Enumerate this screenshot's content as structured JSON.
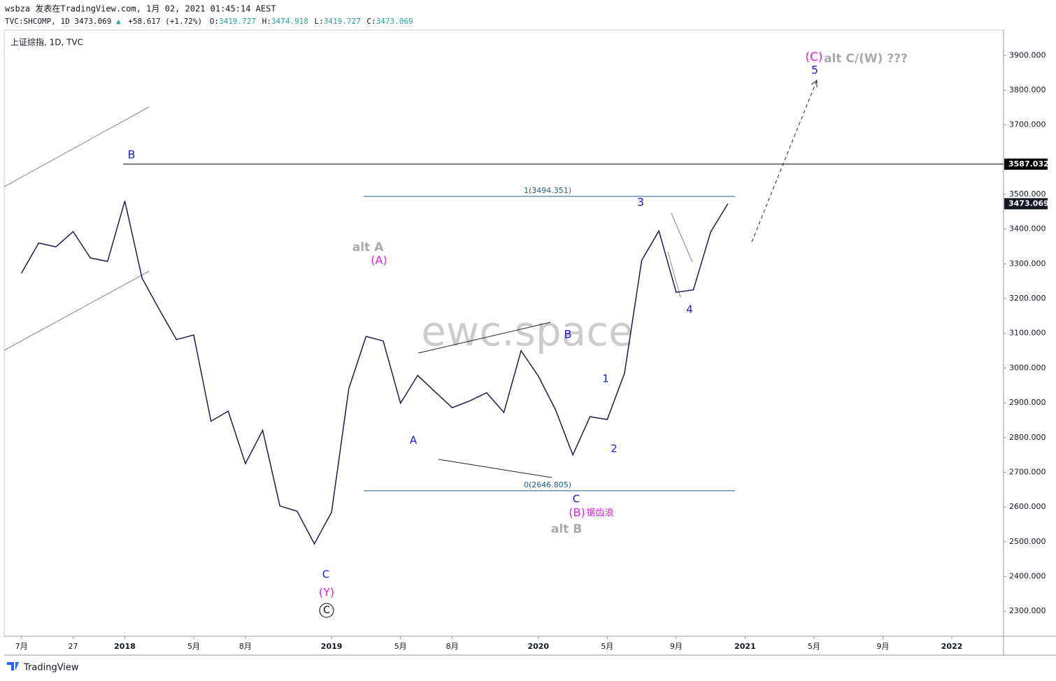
{
  "header": {
    "line1": "wsbza 发表在TradingView.com, 1月 02, 2021 01:45:14 AEST",
    "symbol": "TVC:SHCOMP, 1D 3473.069",
    "arrow": "▲",
    "change": "+58.617 (+1.72%)",
    "o_label": "O:",
    "o": "3419.727",
    "h_label": "H:",
    "h": "3474.918",
    "l_label": "L:",
    "l": "3419.727",
    "c_label": "C:",
    "c": "3473.069"
  },
  "legend": "上证综指, 1D, TVC",
  "watermark": "ewc.space",
  "footer": "TradingView",
  "chart_data": {
    "type": "line",
    "color": "#1c1c4a",
    "x": [
      "2017-07",
      "2017-08",
      "2017-09",
      "2017-10",
      "2017-11",
      "2017-12",
      "2018-01",
      "2018-02",
      "2018-03",
      "2018-04",
      "2018-05",
      "2018-06",
      "2018-07",
      "2018-08",
      "2018-09",
      "2018-10",
      "2018-11",
      "2018-12",
      "2019-01",
      "2019-02",
      "2019-03",
      "2019-04",
      "2019-05",
      "2019-06",
      "2019-07",
      "2019-08",
      "2019-09",
      "2019-10",
      "2019-11",
      "2019-12",
      "2020-01",
      "2020-02",
      "2020-03",
      "2020-04",
      "2020-05",
      "2020-06",
      "2020-07",
      "2020-08",
      "2020-09",
      "2020-10",
      "2020-11",
      "2020-12"
    ],
    "values": [
      3273,
      3360,
      3349,
      3393,
      3317,
      3307,
      3481,
      3259,
      3169,
      3082,
      3095,
      2847,
      2876,
      2725,
      2821,
      2603,
      2588,
      2494,
      2585,
      2941,
      3091,
      3078,
      2899,
      2979,
      2932,
      2886,
      2905,
      2929,
      2872,
      3050,
      2977,
      2880,
      2750,
      2860,
      2852,
      2985,
      3310,
      3395,
      3218,
      3225,
      3392,
      3473
    ],
    "xlim": [
      "2017-06",
      "2022-04"
    ],
    "xticks": [
      {
        "value": "2017-07",
        "label": "7月"
      },
      {
        "value": "2017-10",
        "label": "27"
      },
      {
        "value": "2018-01",
        "label": "2018"
      },
      {
        "value": "2018-05",
        "label": "5月"
      },
      {
        "value": "2018-08",
        "label": "8月"
      },
      {
        "value": "2019-01",
        "label": "2019"
      },
      {
        "value": "2019-05",
        "label": "5月"
      },
      {
        "value": "2019-08",
        "label": "8月"
      },
      {
        "value": "2020-01",
        "label": "2020"
      },
      {
        "value": "2020-05",
        "label": "5月"
      },
      {
        "value": "2020-09",
        "label": "9月"
      },
      {
        "value": "2021-01",
        "label": "2021"
      },
      {
        "value": "2021-05",
        "label": "5月"
      },
      {
        "value": "2021-09",
        "label": "9月"
      },
      {
        "value": "2022-01",
        "label": "2022"
      }
    ],
    "ylim": [
      2228,
      3973
    ],
    "yticks": [
      {
        "value": 2300,
        "label": "2300.000"
      },
      {
        "value": 2400,
        "label": "2400.000"
      },
      {
        "value": 2500,
        "label": "2500.000"
      },
      {
        "value": 2600,
        "label": "2600.000"
      },
      {
        "value": 2700,
        "label": "2700.000"
      },
      {
        "value": 2800,
        "label": "2800.000"
      },
      {
        "value": 2900,
        "label": "2900.000"
      },
      {
        "value": 3000,
        "label": "3000.000"
      },
      {
        "value": 3100,
        "label": "3100.000"
      },
      {
        "value": 3200,
        "label": "3200.000"
      },
      {
        "value": 3300,
        "label": "3300.000"
      },
      {
        "value": 3400,
        "label": "3400.000"
      },
      {
        "value": 3500,
        "label": "3500.000"
      },
      {
        "value": 3700,
        "label": "3700.000"
      },
      {
        "value": 3800,
        "label": "3800.000"
      },
      {
        "value": 3900,
        "label": "3900.000"
      }
    ],
    "resistance": 3587.032,
    "last_price": 3473.069,
    "fib_levels": [
      {
        "value": 3494.351,
        "label": "1(3494.351)"
      },
      {
        "value": 2646.805,
        "label": "0(2646.805)"
      }
    ],
    "annotations": [
      {
        "text": "B",
        "color": "#1a1adb"
      },
      {
        "text": "alt A",
        "color": "#aaaaaa"
      },
      {
        "text": "(A)",
        "color": "#e81be8"
      },
      {
        "text": "A",
        "color": "#1a1adb"
      },
      {
        "text": "B",
        "color": "#1a1adb"
      },
      {
        "text": "C",
        "color": "#1a1adb"
      },
      {
        "text": "(B)",
        "color": "#e81be8"
      },
      {
        "text": "锯齿浪",
        "color": "#e81be8"
      },
      {
        "text": "alt B",
        "color": "#aaaaaa"
      },
      {
        "text": "1",
        "color": "#1a1adb"
      },
      {
        "text": "2",
        "color": "#1a1adb"
      },
      {
        "text": "3",
        "color": "#1a1adb"
      },
      {
        "text": "4",
        "color": "#1a1adb"
      },
      {
        "text": "5",
        "color": "#1a1adb"
      },
      {
        "text": "(C)",
        "color": "#e81be8"
      },
      {
        "text": "alt C/(W) ???",
        "color": "#aaaaaa"
      },
      {
        "text": "C",
        "color": "#1a1adb"
      },
      {
        "text": "(Y)",
        "color": "#e81be8"
      },
      {
        "text": "C",
        "color": "#000000"
      }
    ]
  }
}
